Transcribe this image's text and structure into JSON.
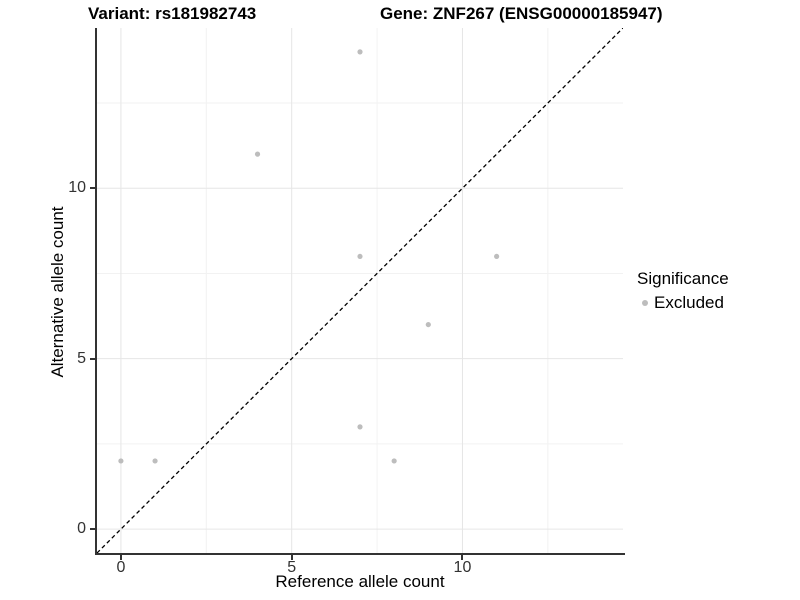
{
  "chart_data": {
    "type": "scatter",
    "title_left": "Variant: rs181982743",
    "title_right": "Gene: ZNF267 (ENSG00000185947)",
    "xlabel": "Reference allele count",
    "ylabel": "Alternative allele count",
    "xlim": [
      -0.7,
      14.7
    ],
    "ylim": [
      -0.7,
      14.7
    ],
    "x_ticks": [
      0,
      5,
      10
    ],
    "y_ticks": [
      0,
      5,
      10
    ],
    "x_minor_ticks": [
      2.5,
      7.5,
      12.5
    ],
    "y_minor_ticks": [
      2.5,
      7.5,
      12.5
    ],
    "grid": {
      "major_color": "#e6e6e6",
      "minor_color": "#f2f2f2"
    },
    "series": [
      {
        "name": "Excluded",
        "color": "#bdbdbd",
        "points": [
          [
            0,
            2
          ],
          [
            1,
            2
          ],
          [
            4,
            11
          ],
          [
            7,
            3
          ],
          [
            7,
            8
          ],
          [
            7,
            14
          ],
          [
            8,
            2
          ],
          [
            9,
            6
          ],
          [
            11,
            8
          ]
        ]
      }
    ],
    "identity_line": {
      "from": [
        -0.7,
        -0.7
      ],
      "to": [
        14.7,
        14.7
      ],
      "style": "dashed",
      "color": "#000000"
    },
    "legend": {
      "title": "Significance",
      "position": "right",
      "items": [
        {
          "label": "Excluded",
          "color": "#bdbdbd"
        }
      ]
    }
  }
}
